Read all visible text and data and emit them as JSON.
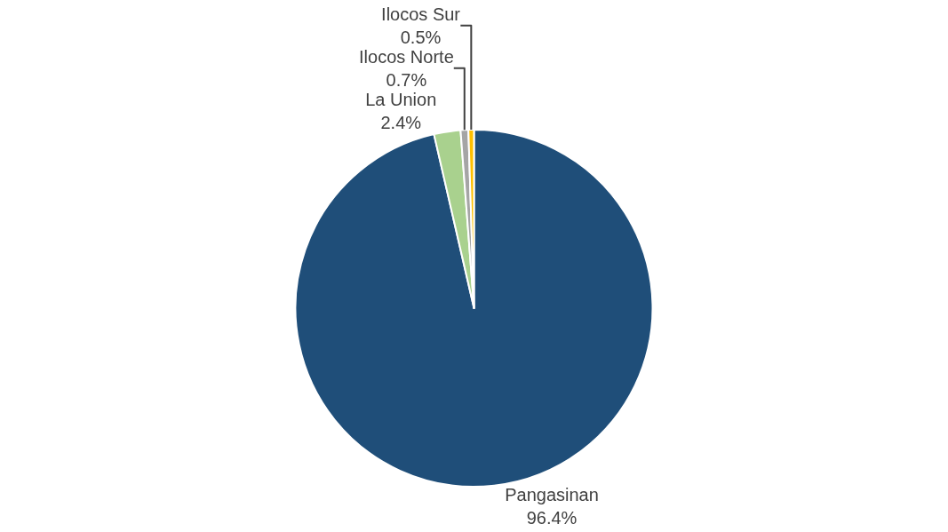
{
  "chart_data": {
    "type": "pie",
    "categories": [
      "Pangasinan",
      "La Union",
      "Ilocos Norte",
      "Ilocos Sur"
    ],
    "values": [
      96.4,
      2.4,
      0.7,
      0.5
    ],
    "colors": [
      "#1f4e79",
      "#a9d18e",
      "#a5a5a5",
      "#ffc000"
    ],
    "value_labels": [
      "96.4%",
      "2.4%",
      "0.7%",
      "0.5%"
    ],
    "legend": false
  }
}
